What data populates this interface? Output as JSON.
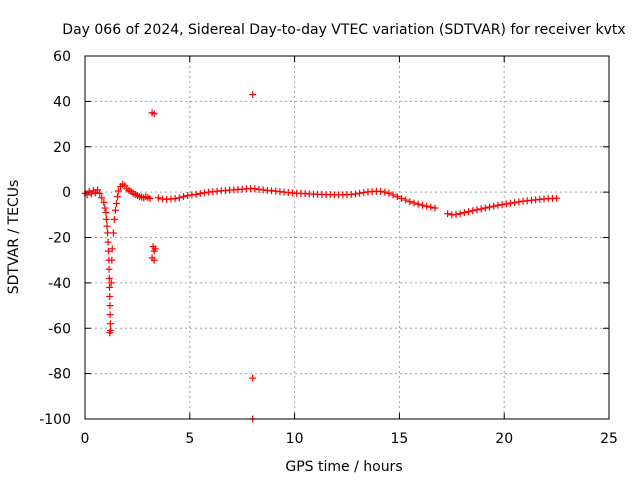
{
  "chart_data": {
    "type": "scatter",
    "title": "Day 066 of 2024, Sidereal Day-to-day VTEC variation (SDTVAR) for receiver kvtx",
    "xlabel": "GPS time / hours",
    "ylabel": "SDTVAR / TECUs",
    "xlim": [
      0,
      25
    ],
    "ylim": [
      -100,
      60
    ],
    "xticks": [
      0,
      5,
      10,
      15,
      20,
      25
    ],
    "yticks": [
      -100,
      -80,
      -60,
      -40,
      -20,
      0,
      20,
      40,
      60
    ],
    "grid": true,
    "marker": "plus",
    "colors": {
      "series": "#ff0000",
      "grid": "#a0a0a0",
      "axis": "#000000"
    },
    "series": [
      {
        "points": [
          [
            0.0,
            -0.5
          ],
          [
            0.1,
            -1.2
          ],
          [
            0.2,
            0.4
          ],
          [
            0.3,
            -0.8
          ],
          [
            0.4,
            0.6
          ],
          [
            0.5,
            -0.3
          ],
          [
            0.6,
            1.0
          ],
          [
            0.7,
            -0.6
          ],
          [
            0.8,
            -2.5
          ],
          [
            0.9,
            -4.5
          ],
          [
            0.95,
            -7
          ],
          [
            1.0,
            -9
          ],
          [
            1.02,
            -12
          ],
          [
            1.05,
            -15
          ],
          [
            1.08,
            -18
          ],
          [
            1.1,
            -22
          ],
          [
            1.12,
            -26
          ],
          [
            1.14,
            -30
          ],
          [
            1.15,
            -34
          ],
          [
            1.16,
            -38
          ],
          [
            1.17,
            -42
          ],
          [
            1.18,
            -46
          ],
          [
            1.19,
            -50
          ],
          [
            1.2,
            -54
          ],
          [
            1.21,
            -58
          ],
          [
            1.22,
            -61
          ],
          [
            1.18,
            -62
          ],
          [
            1.25,
            -40
          ],
          [
            1.28,
            -30
          ],
          [
            1.3,
            -25
          ],
          [
            1.35,
            -18
          ],
          [
            1.4,
            -12
          ],
          [
            1.45,
            -8
          ],
          [
            1.5,
            -5
          ],
          [
            1.55,
            -2
          ],
          [
            1.6,
            0.5
          ],
          [
            1.7,
            2.5
          ],
          [
            1.8,
            3.5
          ],
          [
            1.9,
            2.8
          ],
          [
            2.0,
            1.5
          ],
          [
            2.1,
            0.8
          ],
          [
            2.2,
            0.2
          ],
          [
            2.3,
            -0.5
          ],
          [
            2.4,
            -1.0
          ],
          [
            2.5,
            -1.5
          ],
          [
            2.6,
            -2.0
          ],
          [
            2.7,
            -2.2
          ],
          [
            2.8,
            -2.5
          ],
          [
            2.9,
            -2.0
          ],
          [
            3.0,
            -2.4
          ],
          [
            3.1,
            -2.8
          ],
          [
            3.2,
            35
          ],
          [
            3.3,
            34.5
          ],
          [
            3.25,
            -24
          ],
          [
            3.3,
            -26
          ],
          [
            3.35,
            -25
          ],
          [
            3.2,
            -29
          ],
          [
            3.3,
            -30
          ],
          [
            3.5,
            -2.5
          ],
          [
            3.7,
            -3
          ],
          [
            3.9,
            -3.2
          ],
          [
            4.1,
            -3
          ],
          [
            4.3,
            -2.8
          ],
          [
            4.5,
            -2.5
          ],
          [
            4.7,
            -2.0
          ],
          [
            4.9,
            -1.5
          ],
          [
            5.1,
            -1.2
          ],
          [
            5.3,
            -1.0
          ],
          [
            5.5,
            -0.6
          ],
          [
            5.7,
            -0.3
          ],
          [
            5.9,
            0.0
          ],
          [
            6.1,
            0.2
          ],
          [
            6.3,
            0.4
          ],
          [
            6.5,
            0.6
          ],
          [
            6.7,
            0.7
          ],
          [
            6.9,
            0.9
          ],
          [
            7.1,
            1.0
          ],
          [
            7.3,
            1.2
          ],
          [
            7.5,
            1.3
          ],
          [
            7.7,
            1.5
          ],
          [
            7.9,
            1.6
          ],
          [
            8.0,
            43
          ],
          [
            8.0,
            -82
          ],
          [
            8.0,
            -100
          ],
          [
            8.1,
            1.5
          ],
          [
            8.3,
            1.2
          ],
          [
            8.5,
            1.0
          ],
          [
            8.7,
            0.8
          ],
          [
            8.9,
            0.6
          ],
          [
            9.1,
            0.4
          ],
          [
            9.3,
            0.2
          ],
          [
            9.5,
            0.0
          ],
          [
            9.7,
            -0.2
          ],
          [
            9.9,
            -0.4
          ],
          [
            10.1,
            -0.5
          ],
          [
            10.3,
            -0.6
          ],
          [
            10.5,
            -0.7
          ],
          [
            10.7,
            -0.8
          ],
          [
            10.9,
            -0.9
          ],
          [
            11.1,
            -1.0
          ],
          [
            11.3,
            -1.0
          ],
          [
            11.5,
            -1.1
          ],
          [
            11.7,
            -1.1
          ],
          [
            11.9,
            -1.2
          ],
          [
            12.1,
            -1.2
          ],
          [
            12.3,
            -1.2
          ],
          [
            12.5,
            -1.1
          ],
          [
            12.7,
            -1.0
          ],
          [
            12.9,
            -0.8
          ],
          [
            13.1,
            -0.5
          ],
          [
            13.3,
            -0.2
          ],
          [
            13.5,
            0.1
          ],
          [
            13.7,
            0.3
          ],
          [
            13.9,
            0.4
          ],
          [
            14.1,
            0.3
          ],
          [
            14.3,
            0.0
          ],
          [
            14.5,
            -0.5
          ],
          [
            14.7,
            -1.2
          ],
          [
            14.9,
            -2.0
          ],
          [
            15.1,
            -2.8
          ],
          [
            15.3,
            -3.5
          ],
          [
            15.5,
            -4.2
          ],
          [
            15.7,
            -4.8
          ],
          [
            15.9,
            -5.3
          ],
          [
            16.1,
            -5.8
          ],
          [
            16.3,
            -6.2
          ],
          [
            16.5,
            -6.6
          ],
          [
            16.7,
            -7.0
          ],
          [
            17.3,
            -9.5
          ],
          [
            17.5,
            -10.0
          ],
          [
            17.7,
            -9.8
          ],
          [
            17.9,
            -9.5
          ],
          [
            18.1,
            -9.0
          ],
          [
            18.3,
            -8.6
          ],
          [
            18.5,
            -8.2
          ],
          [
            18.7,
            -7.8
          ],
          [
            18.9,
            -7.4
          ],
          [
            19.1,
            -7.0
          ],
          [
            19.3,
            -6.6
          ],
          [
            19.5,
            -6.2
          ],
          [
            19.7,
            -5.8
          ],
          [
            19.9,
            -5.5
          ],
          [
            20.1,
            -5.2
          ],
          [
            20.3,
            -4.9
          ],
          [
            20.5,
            -4.6
          ],
          [
            20.7,
            -4.3
          ],
          [
            20.9,
            -4.0
          ],
          [
            21.1,
            -3.8
          ],
          [
            21.3,
            -3.6
          ],
          [
            21.5,
            -3.4
          ],
          [
            21.7,
            -3.2
          ],
          [
            21.9,
            -3.0
          ],
          [
            22.1,
            -2.9
          ],
          [
            22.3,
            -2.8
          ],
          [
            22.5,
            -2.7
          ]
        ]
      }
    ]
  }
}
